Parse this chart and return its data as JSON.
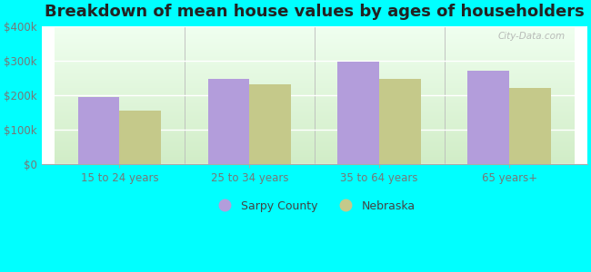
{
  "title": "Breakdown of mean house values by ages of householders",
  "categories": [
    "15 to 24 years",
    "25 to 34 years",
    "35 to 64 years",
    "65 years+"
  ],
  "sarpy_values": [
    195000,
    248000,
    297000,
    272000
  ],
  "nebraska_values": [
    155000,
    232000,
    249000,
    222000
  ],
  "sarpy_color": "#b39ddb",
  "nebraska_color": "#c5c98a",
  "ylim": [
    0,
    400000
  ],
  "yticks": [
    0,
    100000,
    200000,
    300000,
    400000
  ],
  "ytick_labels": [
    "$0",
    "$100k",
    "$200k",
    "$300k",
    "$400k"
  ],
  "background_color": "#00ffff",
  "legend_sarpy": "Sarpy County",
  "legend_nebraska": "Nebraska",
  "watermark": "City-Data.com",
  "bar_width": 0.32,
  "title_fontsize": 13,
  "tick_label_color": "#777777",
  "grid_color": "#dddddd"
}
